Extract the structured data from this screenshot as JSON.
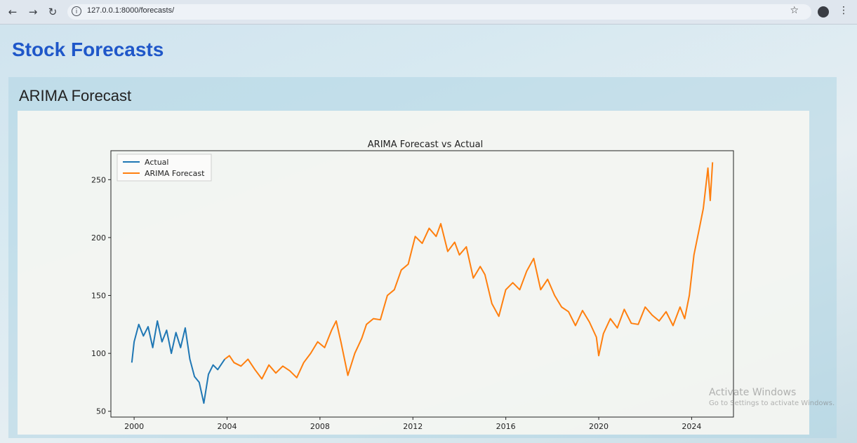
{
  "browser": {
    "url": "127.0.0.1:8000/forecasts/",
    "icons": [
      "back-icon",
      "forward-icon",
      "reload-icon",
      "info-icon",
      "star-icon",
      "menu-icon"
    ]
  },
  "page": {
    "title": "Stock Forecasts",
    "section_title": "ARIMA Forecast"
  },
  "watermark": {
    "line1": "Activate Windows",
    "line2": "Go to Settings to activate Windows."
  },
  "colors": {
    "title": "#1f57c9",
    "actual": "#1f77b4",
    "forecast": "#ff7f0e"
  },
  "chart_data": {
    "type": "line",
    "title": "ARIMA Forecast vs Actual",
    "xlabel": "",
    "ylabel": "",
    "xlim": [
      1999.0,
      2025.8
    ],
    "ylim": [
      45,
      275
    ],
    "xticks": [
      2000,
      2004,
      2008,
      2012,
      2016,
      2020,
      2024
    ],
    "yticks": [
      50,
      100,
      150,
      200,
      250
    ],
    "legend_position": "upper-left",
    "series": [
      {
        "name": "Actual",
        "color": "#1f77b4",
        "x": [
          1999.9,
          2000.0,
          2000.2,
          2000.4,
          2000.6,
          2000.8,
          2001.0,
          2001.2,
          2001.4,
          2001.6,
          2001.8,
          2002.0,
          2002.2,
          2002.4,
          2002.6,
          2002.8,
          2003.0,
          2003.2,
          2003.4,
          2003.6,
          2003.8,
          2003.9
        ],
        "y": [
          92,
          110,
          125,
          115,
          123,
          105,
          128,
          110,
          120,
          100,
          118,
          105,
          122,
          95,
          80,
          75,
          57,
          82,
          90,
          86,
          92,
          95
        ]
      },
      {
        "name": "ARIMA Forecast",
        "color": "#ff7f0e",
        "x": [
          2003.9,
          2004.1,
          2004.3,
          2004.6,
          2004.9,
          2005.2,
          2005.5,
          2005.8,
          2006.1,
          2006.4,
          2006.7,
          2007.0,
          2007.3,
          2007.6,
          2007.9,
          2008.2,
          2008.5,
          2008.7,
          2008.9,
          2009.2,
          2009.5,
          2009.8,
          2010.0,
          2010.3,
          2010.6,
          2010.9,
          2011.2,
          2011.5,
          2011.8,
          2012.1,
          2012.4,
          2012.7,
          2013.0,
          2013.2,
          2013.5,
          2013.8,
          2014.0,
          2014.3,
          2014.6,
          2014.9,
          2015.1,
          2015.4,
          2015.7,
          2016.0,
          2016.3,
          2016.6,
          2016.9,
          2017.2,
          2017.5,
          2017.8,
          2018.1,
          2018.4,
          2018.7,
          2019.0,
          2019.3,
          2019.6,
          2019.9,
          2020.0,
          2020.2,
          2020.5,
          2020.8,
          2021.1,
          2021.4,
          2021.7,
          2022.0,
          2022.3,
          2022.6,
          2022.9,
          2023.2,
          2023.5,
          2023.7,
          2023.9,
          2024.1,
          2024.3,
          2024.5,
          2024.7,
          2024.8,
          2024.9
        ],
        "y": [
          95,
          98,
          92,
          89,
          95,
          86,
          78,
          90,
          83,
          89,
          85,
          79,
          92,
          100,
          110,
          105,
          120,
          128,
          110,
          81,
          100,
          113,
          125,
          130,
          129,
          150,
          155,
          172,
          177,
          201,
          195,
          208,
          201,
          212,
          188,
          196,
          185,
          192,
          165,
          175,
          168,
          143,
          132,
          155,
          161,
          155,
          171,
          182,
          155,
          164,
          150,
          140,
          136,
          124,
          137,
          127,
          114,
          98,
          117,
          130,
          122,
          138,
          126,
          125,
          140,
          133,
          128,
          136,
          124,
          140,
          130,
          150,
          185,
          205,
          225,
          260,
          232,
          265
        ]
      }
    ]
  }
}
